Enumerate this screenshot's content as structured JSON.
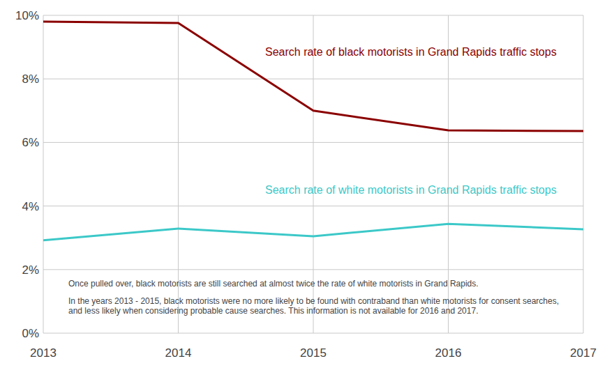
{
  "chart_data": {
    "type": "line",
    "x": [
      2013,
      2014,
      2015,
      2016,
      2017
    ],
    "series": [
      {
        "name": "Search rate of black motorists in Grand Rapids traffic stops",
        "color": "#8b0000",
        "values": [
          9.8,
          9.76,
          7.0,
          6.38,
          6.36
        ]
      },
      {
        "name": "Search rate of white motorists in Grand Rapids traffic stops",
        "color": "#3cc8c8",
        "values": [
          2.92,
          3.29,
          3.05,
          3.44,
          3.27
        ]
      }
    ],
    "annotations": [
      "Once pulled over, black motorists are still searched at almost twice the rate of white motorists in Grand Rapids.",
      "In the years 2013 - 2015, black motorists were no more likely to be found with contraband than white motorists for consent searches, and less likely when considering probable cause searches. This information is not available for 2016 and 2017."
    ],
    "xlim": [
      2013,
      2017
    ],
    "xticks": [
      2013,
      2014,
      2015,
      2016,
      2017
    ],
    "ylim": [
      0,
      10
    ],
    "yticks": [
      {
        "value": 0,
        "label": "0%"
      },
      {
        "value": 2,
        "label": "2%"
      },
      {
        "value": 4,
        "label": "4%"
      },
      {
        "value": 6,
        "label": "6%"
      },
      {
        "value": 8,
        "label": "8%"
      },
      {
        "value": 10,
        "label": "10%"
      }
    ],
    "grid": true
  }
}
